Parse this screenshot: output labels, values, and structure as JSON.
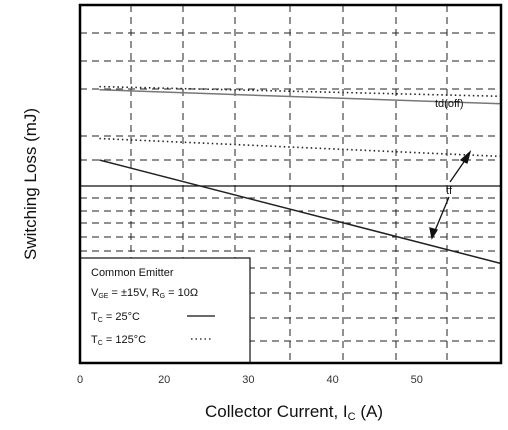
{
  "chart_data": {
    "type": "line",
    "xlabel": "Collector Current, I",
    "xlabel_sub": "C",
    "xlabel_unit": " (A)",
    "ylabel": "Switching Loss (mJ)",
    "xlim": [
      0,
      50
    ],
    "x_ticks": [
      {
        "value": 0,
        "label": "0"
      },
      {
        "value": 10,
        "label": "20"
      },
      {
        "value": 20,
        "label": "30"
      },
      {
        "value": 30,
        "label": "40"
      },
      {
        "value": 40,
        "label": "50"
      }
    ],
    "ylim": [
      0,
      1
    ],
    "grid": "dashed",
    "series": [
      {
        "name": "td(off)",
        "condition": "25",
        "style": "solid",
        "x": [
          2.3,
          50
        ],
        "y": [
          0.763,
          0.724
        ]
      },
      {
        "name": "td(off)",
        "condition": "125",
        "style": "dotted",
        "x": [
          2.3,
          50
        ],
        "y": [
          0.772,
          0.745
        ]
      },
      {
        "name": "tf",
        "condition": "125",
        "style": "dotted",
        "x": [
          2.3,
          50
        ],
        "y": [
          0.627,
          0.577
        ]
      },
      {
        "name": "tf",
        "condition": "25",
        "style": "solid",
        "x": [
          2.3,
          50
        ],
        "y": [
          0.567,
          0.278
        ]
      }
    ],
    "annotations": [
      {
        "text": "td(off)"
      },
      {
        "text": "tf"
      }
    ],
    "legend": {
      "position": "bottom-left",
      "line1": "Common Emitter",
      "line2_a": "V",
      "line2_a_sub": "GE",
      "line2_b": " = ±15V, R",
      "line2_b_sub": "G",
      "line2_c": " = 10Ω",
      "line3_a": "T",
      "line3_a_sub": "C",
      "line3_b": " = 25°C",
      "line4_a": "T",
      "line4_a_sub": "C",
      "line4_b": " = 125°C"
    }
  }
}
